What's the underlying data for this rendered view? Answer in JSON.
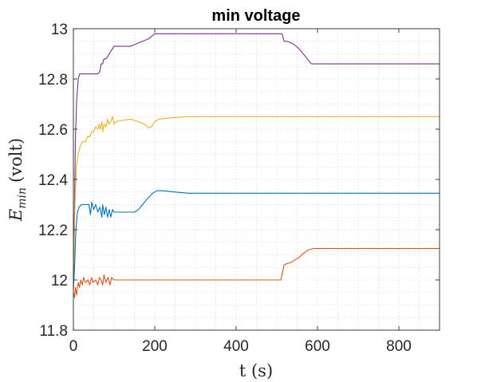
{
  "chart_data": {
    "type": "line",
    "title": "min voltage",
    "xlabel": "t (s)",
    "ylabel": {
      "symbol": "E",
      "subscript": "min",
      "unit": "(volt)"
    },
    "xlim": [
      0,
      900
    ],
    "ylim": [
      11.8,
      13
    ],
    "xticks": [
      0,
      200,
      400,
      600,
      800
    ],
    "xtick_labels": [
      "0",
      "200",
      "400",
      "600",
      "800"
    ],
    "yticks": [
      11.8,
      12,
      12.2,
      12.4,
      12.6,
      12.8,
      13
    ],
    "ytick_labels": [
      "11.8",
      "12",
      "12.2",
      "12.4",
      "12.6",
      "12.8",
      "13"
    ],
    "grid": "dotted minor",
    "legend": "none",
    "series": [
      {
        "color": "#7E2F8E",
        "points": [
          [
            0,
            11.96
          ],
          [
            5,
            12.55
          ],
          [
            8,
            12.72
          ],
          [
            12,
            12.8
          ],
          [
            15,
            12.82
          ],
          [
            25,
            12.82
          ],
          [
            35,
            12.82
          ],
          [
            45,
            12.82
          ],
          [
            60,
            12.82
          ],
          [
            65,
            12.83
          ],
          [
            68,
            12.86
          ],
          [
            72,
            12.86
          ],
          [
            75,
            12.88
          ],
          [
            80,
            12.88
          ],
          [
            85,
            12.89
          ],
          [
            88,
            12.9
          ],
          [
            92,
            12.91
          ],
          [
            100,
            12.93
          ],
          [
            120,
            12.93
          ],
          [
            140,
            12.93
          ],
          [
            155,
            12.94
          ],
          [
            170,
            12.95
          ],
          [
            185,
            12.96
          ],
          [
            200,
            12.98
          ],
          [
            220,
            12.98
          ],
          [
            300,
            12.98
          ],
          [
            400,
            12.98
          ],
          [
            500,
            12.98
          ],
          [
            513,
            12.98
          ],
          [
            518,
            12.95
          ],
          [
            525,
            12.95
          ],
          [
            540,
            12.94
          ],
          [
            555,
            12.92
          ],
          [
            570,
            12.89
          ],
          [
            585,
            12.86
          ],
          [
            600,
            12.86
          ],
          [
            700,
            12.86
          ],
          [
            800,
            12.86
          ],
          [
            900,
            12.86
          ]
        ]
      },
      {
        "color": "#EDB120",
        "points": [
          [
            0,
            11.96
          ],
          [
            4,
            12.3
          ],
          [
            7,
            12.45
          ],
          [
            12,
            12.5
          ],
          [
            16,
            12.53
          ],
          [
            22,
            12.55
          ],
          [
            30,
            12.55
          ],
          [
            35,
            12.57
          ],
          [
            40,
            12.57
          ],
          [
            45,
            12.59
          ],
          [
            50,
            12.59
          ],
          [
            55,
            12.61
          ],
          [
            60,
            12.6
          ],
          [
            63,
            12.62
          ],
          [
            66,
            12.6
          ],
          [
            70,
            12.63
          ],
          [
            72,
            12.59
          ],
          [
            75,
            12.62
          ],
          [
            80,
            12.61
          ],
          [
            84,
            12.64
          ],
          [
            87,
            12.62
          ],
          [
            92,
            12.63
          ],
          [
            96,
            12.65
          ],
          [
            100,
            12.62
          ],
          [
            105,
            12.63
          ],
          [
            120,
            12.635
          ],
          [
            140,
            12.64
          ],
          [
            150,
            12.635
          ],
          [
            160,
            12.63
          ],
          [
            175,
            12.62
          ],
          [
            185,
            12.605
          ],
          [
            192,
            12.61
          ],
          [
            200,
            12.63
          ],
          [
            210,
            12.64
          ],
          [
            240,
            12.645
          ],
          [
            280,
            12.65
          ],
          [
            300,
            12.65
          ],
          [
            400,
            12.65
          ],
          [
            500,
            12.65
          ],
          [
            600,
            12.65
          ],
          [
            700,
            12.65
          ],
          [
            800,
            12.65
          ],
          [
            900,
            12.65
          ]
        ]
      },
      {
        "color": "#0072BD",
        "points": [
          [
            0,
            11.97
          ],
          [
            3,
            12.05
          ],
          [
            6,
            12.2
          ],
          [
            10,
            12.27
          ],
          [
            14,
            12.29
          ],
          [
            20,
            12.3
          ],
          [
            30,
            12.3
          ],
          [
            38,
            12.3
          ],
          [
            42,
            12.26
          ],
          [
            45,
            12.31
          ],
          [
            50,
            12.28
          ],
          [
            55,
            12.3
          ],
          [
            60,
            12.27
          ],
          [
            65,
            12.29
          ],
          [
            70,
            12.25
          ],
          [
            72,
            12.3
          ],
          [
            76,
            12.26
          ],
          [
            80,
            12.29
          ],
          [
            84,
            12.25
          ],
          [
            88,
            12.28
          ],
          [
            92,
            12.25
          ],
          [
            96,
            12.28
          ],
          [
            100,
            12.27
          ],
          [
            120,
            12.27
          ],
          [
            150,
            12.27
          ],
          [
            160,
            12.28
          ],
          [
            170,
            12.3
          ],
          [
            180,
            12.32
          ],
          [
            195,
            12.345
          ],
          [
            205,
            12.355
          ],
          [
            220,
            12.355
          ],
          [
            250,
            12.35
          ],
          [
            283,
            12.345
          ],
          [
            300,
            12.345
          ],
          [
            400,
            12.345
          ],
          [
            500,
            12.345
          ],
          [
            600,
            12.345
          ],
          [
            700,
            12.345
          ],
          [
            800,
            12.345
          ],
          [
            900,
            12.345
          ]
        ]
      },
      {
        "color": "#D95319",
        "points": [
          [
            0,
            11.95
          ],
          [
            3,
            11.93
          ],
          [
            5,
            11.97
          ],
          [
            8,
            11.94
          ],
          [
            10,
            11.97
          ],
          [
            12,
            11.99
          ],
          [
            15,
            11.97
          ],
          [
            18,
            12
          ],
          [
            22,
            11.98
          ],
          [
            25,
            12.01
          ],
          [
            30,
            11.99
          ],
          [
            36,
            12
          ],
          [
            40,
            11.98
          ],
          [
            45,
            12.01
          ],
          [
            48,
            11.99
          ],
          [
            55,
            12
          ],
          [
            60,
            11.98
          ],
          [
            64,
            12.01
          ],
          [
            68,
            12
          ],
          [
            72,
            11.98
          ],
          [
            75,
            12.02
          ],
          [
            80,
            11.99
          ],
          [
            85,
            12.01
          ],
          [
            90,
            11.98
          ],
          [
            94,
            12.01
          ],
          [
            100,
            12
          ],
          [
            200,
            12
          ],
          [
            300,
            12
          ],
          [
            400,
            12
          ],
          [
            510,
            12
          ],
          [
            514,
            12.03
          ],
          [
            518,
            12.06
          ],
          [
            525,
            12.065
          ],
          [
            535,
            12.07
          ],
          [
            545,
            12.08
          ],
          [
            555,
            12.09
          ],
          [
            565,
            12.105
          ],
          [
            578,
            12.12
          ],
          [
            590,
            12.125
          ],
          [
            600,
            12.125
          ],
          [
            700,
            12.125
          ],
          [
            800,
            12.125
          ],
          [
            900,
            12.125
          ]
        ]
      }
    ]
  }
}
